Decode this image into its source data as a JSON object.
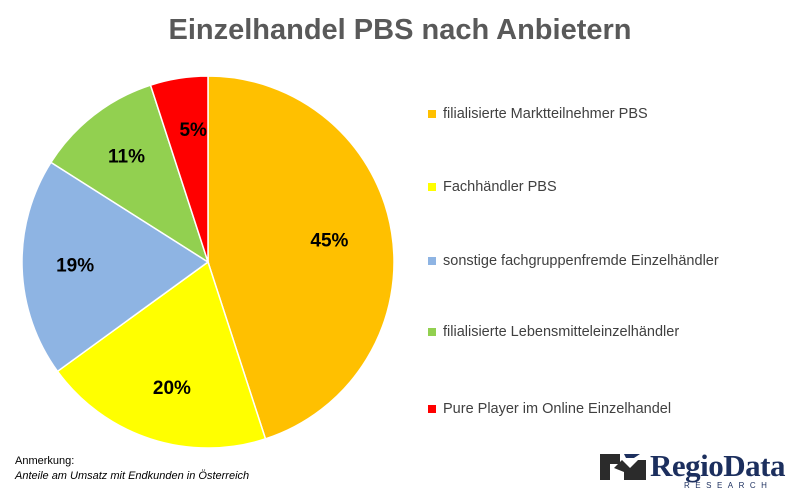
{
  "chart_data": {
    "type": "pie",
    "title": "Einzelhandel PBS nach Anbietern",
    "start_angle_deg": 0,
    "direction": "clockwise",
    "slices": [
      {
        "label": "filialisierte Marktteilnehmer PBS",
        "value": 45,
        "display": "45%",
        "color": "#FFC000"
      },
      {
        "label": "Fachhändler PBS",
        "value": 20,
        "display": "20%",
        "color": "#FFFF00"
      },
      {
        "label": "sonstige fachgruppenfremde Einzelhändler",
        "value": 19,
        "display": "19%",
        "color": "#8EB4E3"
      },
      {
        "label": "filialisierte Lebensmitteleinzelhändler",
        "value": 11,
        "display": "11%",
        "color": "#92D050"
      },
      {
        "label": "Pure Player im Online Einzelhandel",
        "value": 5,
        "display": "5%",
        "color": "#FF0000"
      }
    ],
    "legend_position": "right"
  },
  "note": {
    "heading": "Anmerkung:",
    "text": "Anteile am Umsatz mit Endkunden in Österreich"
  },
  "logo": {
    "text": "RegioData",
    "subtext": "RESEARCH",
    "icon": "regiodata-logo-icon"
  }
}
